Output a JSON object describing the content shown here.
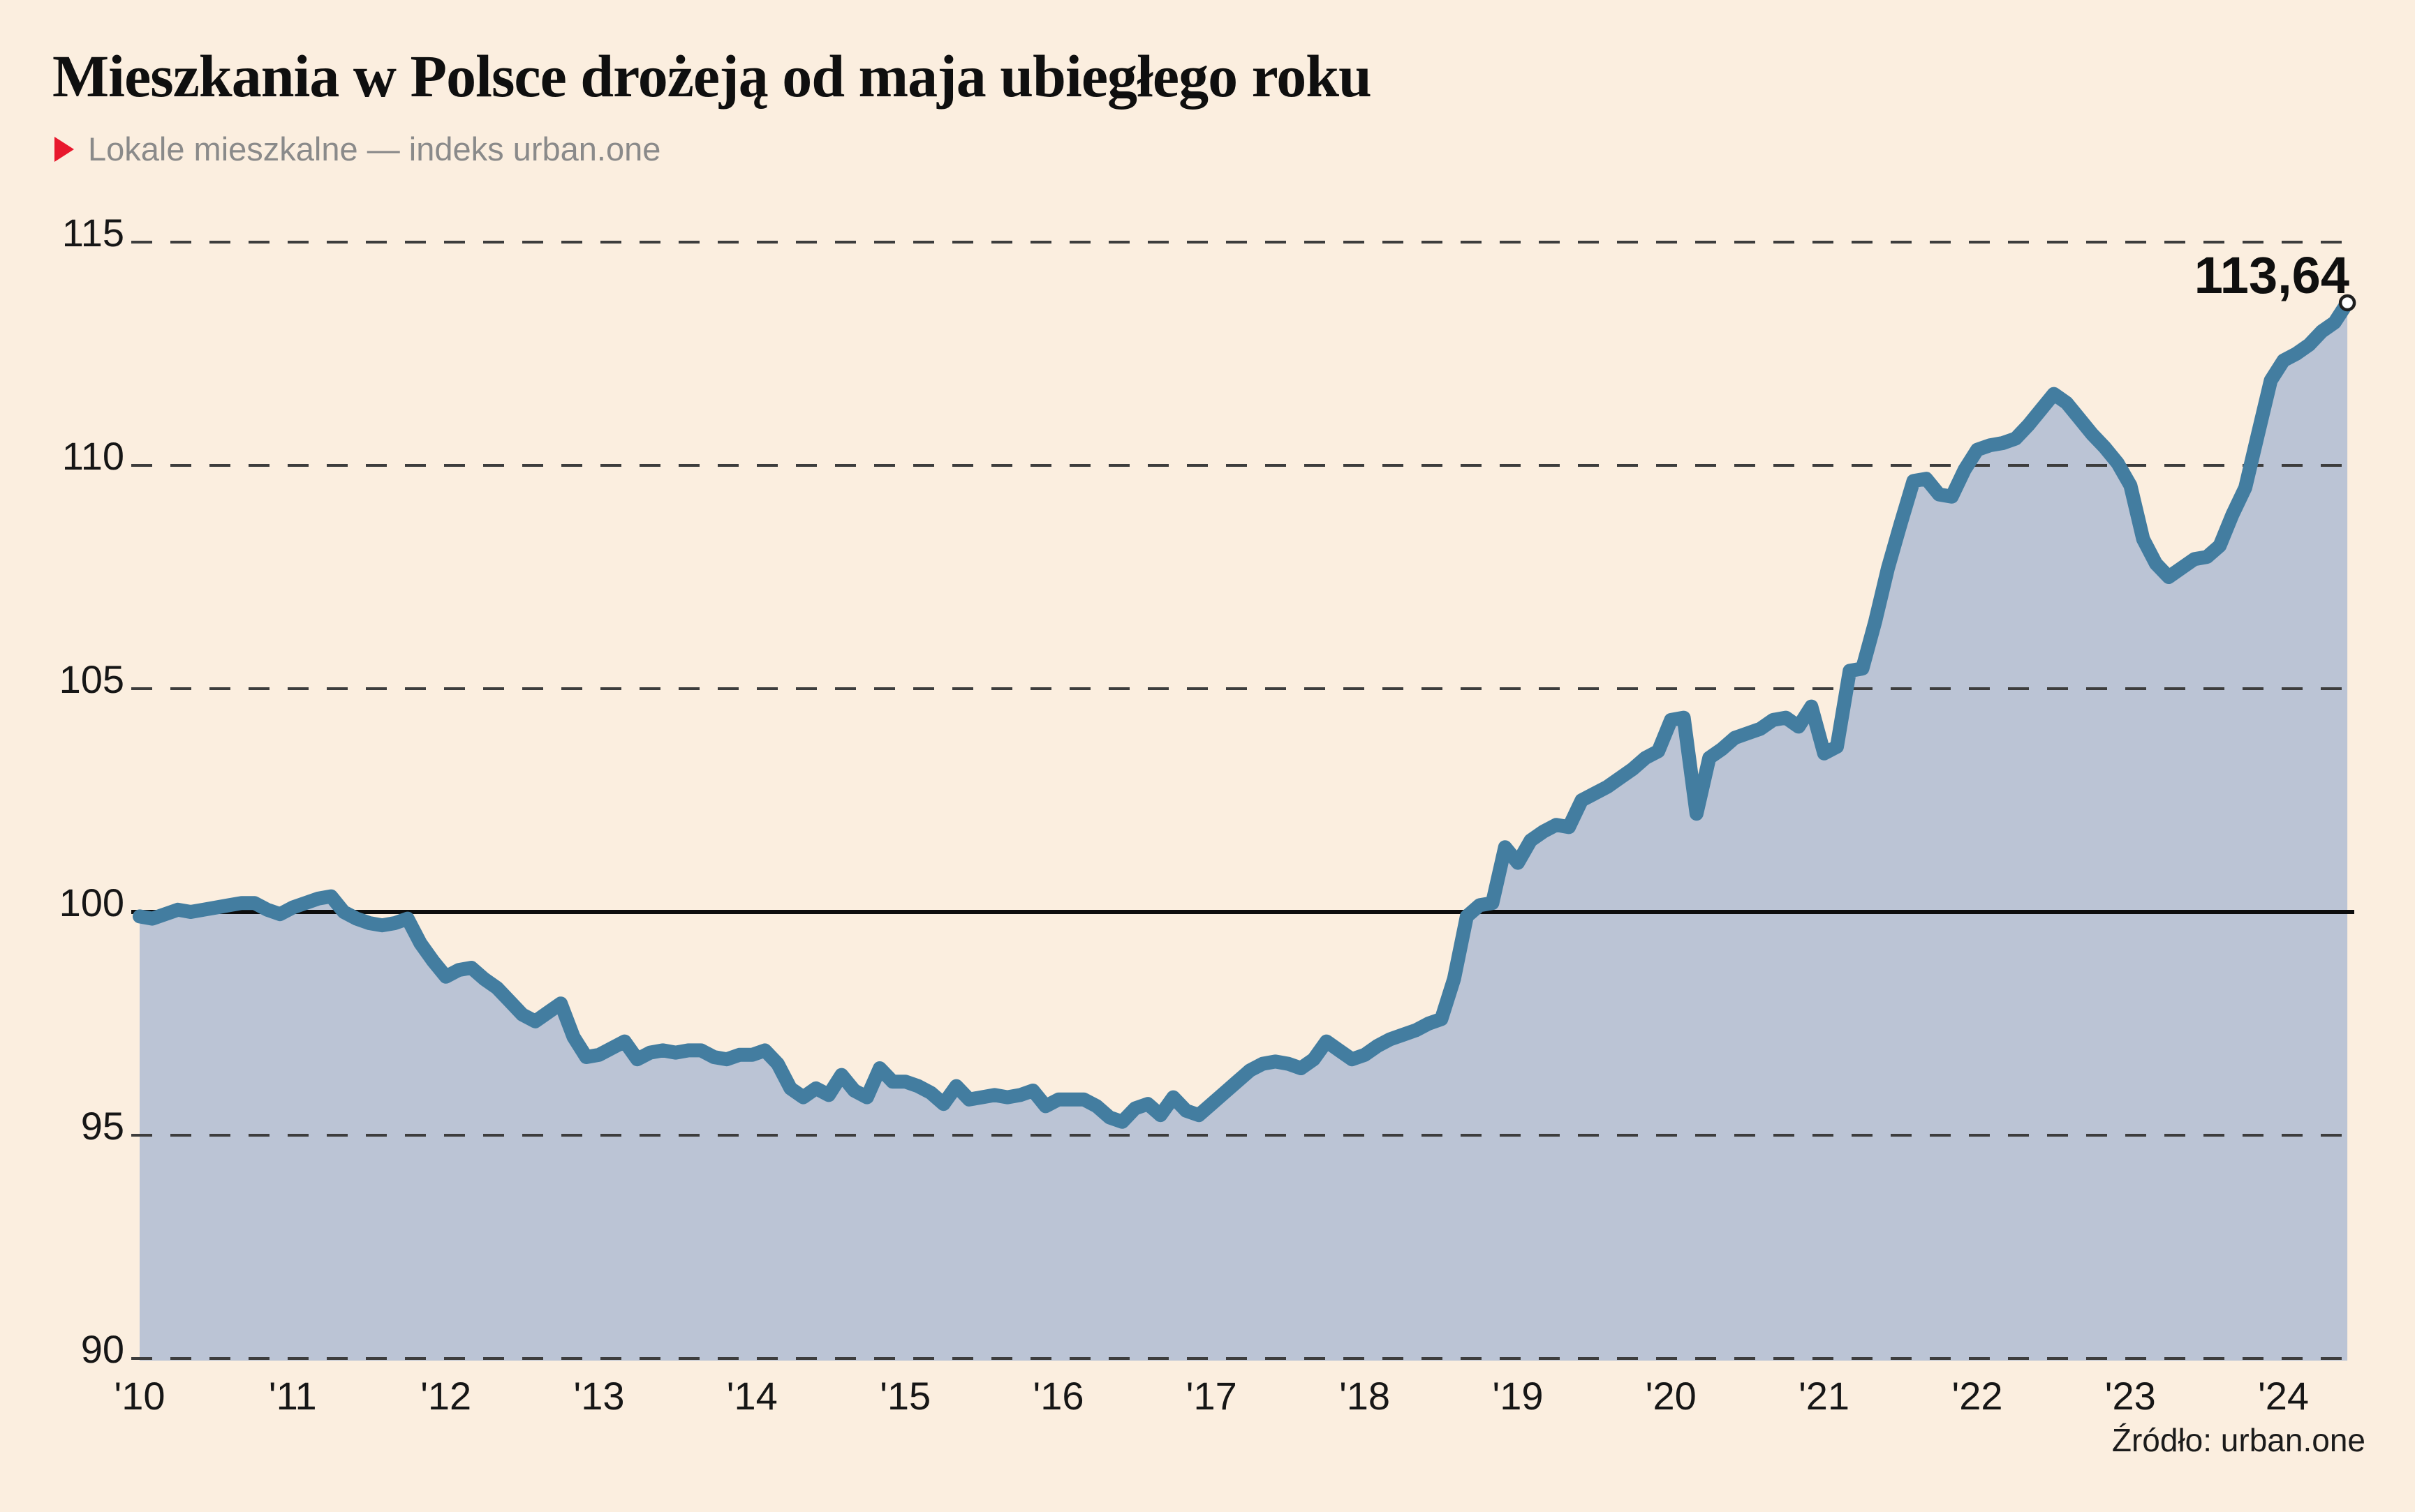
{
  "header": {
    "title": "Mieszkania w Polsce drożeją od maja ubiegłego roku",
    "subtitle": "Lokale mieszkalne — indeks urban.one"
  },
  "annotation": {
    "last_value_label": "113,64"
  },
  "source": {
    "label": "Źródło: urban.one"
  },
  "colors": {
    "background": "#fbeedf",
    "area_fill": "#bbc4d5",
    "line": "#437da0",
    "grid_dashed": "#3d3d3d",
    "baseline_solid": "#0d0d0d",
    "axis_text": "#161616",
    "subtitle_gray": "#8a8a8a",
    "accent_red": "#e8182d",
    "endpoint_fill": "#ffffff",
    "endpoint_stroke": "#1f1f1f"
  },
  "chart_data": {
    "type": "area",
    "title": "Mieszkania w Polsce drożeją od maja ubiegłego roku",
    "subtitle": "Lokale mieszkalne — indeks urban.one",
    "series_name": "indeks urban.one",
    "frequency": "monthly",
    "x_start": {
      "year": 2010,
      "month": 1
    },
    "x_end": {
      "year": 2024,
      "month": 6
    },
    "x_tick_labels": [
      "'10",
      "'11",
      "'12",
      "'13",
      "'14",
      "'15",
      "'16",
      "'17",
      "'18",
      "'19",
      "'20",
      "'21",
      "'22",
      "'23",
      "'24"
    ],
    "y_ticks": [
      115,
      110,
      105,
      100,
      95,
      90
    ],
    "y_tick_labels": [
      "115",
      "110",
      "105",
      "100",
      "95",
      "90"
    ],
    "ylim": [
      90,
      115
    ],
    "baseline_value": 100,
    "grid": "horizontal dashed, solid line at 100",
    "legend_position": "none",
    "last_value": 113.64,
    "values": [
      99.9,
      99.85,
      99.95,
      100.05,
      100.0,
      100.05,
      100.1,
      100.15,
      100.2,
      100.2,
      100.05,
      99.95,
      100.1,
      100.2,
      100.3,
      100.35,
      100.0,
      99.85,
      99.75,
      99.7,
      99.75,
      99.85,
      99.3,
      98.9,
      98.55,
      98.7,
      98.75,
      98.5,
      98.3,
      98.0,
      97.7,
      97.55,
      97.75,
      97.95,
      97.2,
      96.75,
      96.8,
      96.95,
      97.1,
      96.7,
      96.85,
      96.9,
      96.85,
      96.9,
      96.9,
      96.75,
      96.7,
      96.8,
      96.8,
      96.9,
      96.6,
      96.05,
      95.85,
      96.05,
      95.9,
      96.35,
      96.0,
      95.85,
      96.5,
      96.2,
      96.2,
      96.1,
      95.95,
      95.7,
      96.1,
      95.8,
      95.85,
      95.9,
      95.85,
      95.9,
      96.0,
      95.65,
      95.8,
      95.8,
      95.8,
      95.65,
      95.4,
      95.3,
      95.6,
      95.7,
      95.45,
      95.85,
      95.55,
      95.45,
      95.7,
      95.95,
      96.2,
      96.45,
      96.6,
      96.65,
      96.6,
      96.5,
      96.7,
      97.1,
      96.9,
      96.7,
      96.8,
      97.0,
      97.15,
      97.25,
      97.35,
      97.5,
      97.6,
      98.5,
      99.9,
      100.15,
      100.2,
      101.45,
      101.1,
      101.6,
      101.8,
      101.95,
      101.9,
      102.5,
      102.65,
      102.8,
      103.0,
      103.2,
      103.45,
      103.6,
      104.3,
      104.35,
      102.2,
      103.45,
      103.65,
      103.9,
      104.0,
      104.1,
      104.3,
      104.35,
      104.15,
      104.6,
      103.55,
      103.7,
      105.4,
      105.45,
      106.5,
      107.7,
      108.7,
      109.65,
      109.7,
      109.35,
      109.3,
      109.9,
      110.35,
      110.45,
      110.5,
      110.6,
      110.9,
      111.25,
      111.6,
      111.4,
      111.05,
      110.7,
      110.4,
      110.05,
      109.55,
      108.35,
      107.8,
      107.5,
      107.7,
      107.9,
      107.95,
      108.2,
      108.9,
      109.5,
      110.7,
      111.9,
      112.35,
      112.5,
      112.7,
      113.0,
      113.2,
      113.64
    ]
  }
}
